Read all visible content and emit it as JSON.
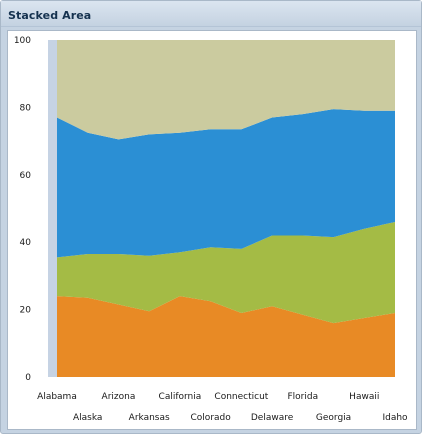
{
  "panel": {
    "title": "Stacked Area"
  },
  "chart_data": {
    "type": "area",
    "stacked": true,
    "title": "",
    "xlabel": "",
    "ylabel": "",
    "ylim": [
      0,
      100
    ],
    "yticks": [
      0,
      20,
      40,
      60,
      80,
      100
    ],
    "grid": false,
    "legend": "none",
    "categories": [
      "Alabama",
      "Alaska",
      "Arizona",
      "Arkansas",
      "California",
      "Colorado",
      "Connecticut",
      "Delaware",
      "Florida",
      "Georgia",
      "Hawaii",
      "Idaho"
    ],
    "series": [
      {
        "color": "#e88a25",
        "values": [
          24,
          23.5,
          21.5,
          19.5,
          24,
          22.5,
          19,
          21,
          18.5,
          16,
          17.5,
          19
        ]
      },
      {
        "color": "#a4bb45",
        "values": [
          11.5,
          13,
          15,
          16.5,
          13,
          16,
          19,
          21,
          23.5,
          25.5,
          26.5,
          27
        ]
      },
      {
        "color": "#2b8fd4",
        "values": [
          41.5,
          36,
          34,
          36,
          35.5,
          35,
          35.5,
          35,
          36,
          38,
          35,
          33
        ]
      },
      {
        "color": "#cbcb9f",
        "values": [
          23,
          27.5,
          29.5,
          28,
          27.5,
          26.5,
          26.5,
          23,
          22,
          20.5,
          21,
          21
        ]
      }
    ]
  }
}
